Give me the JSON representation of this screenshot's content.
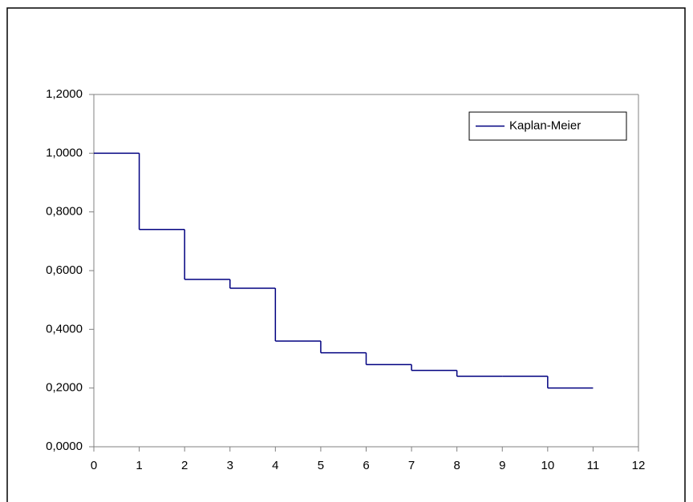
{
  "chart_data": {
    "type": "line",
    "x": [
      0,
      1,
      2,
      3,
      4,
      5,
      6,
      7,
      8,
      9,
      10,
      11
    ],
    "series": [
      {
        "name": "Kaplan-Meier",
        "color": "#000080",
        "step": "post",
        "values": [
          1.0,
          0.74,
          0.57,
          0.54,
          0.36,
          0.32,
          0.28,
          0.26,
          0.24,
          0.24,
          0.2,
          0.2
        ]
      }
    ],
    "xlim": [
      0,
      12
    ],
    "xticks": [
      0,
      1,
      2,
      3,
      4,
      5,
      6,
      7,
      8,
      9,
      10,
      11,
      12
    ],
    "ylim": [
      0,
      1.2
    ],
    "yticks": [
      {
        "value": 0,
        "label": "0,0000"
      },
      {
        "value": 0.2,
        "label": "0,2000"
      },
      {
        "value": 0.4,
        "label": "0,4000"
      },
      {
        "value": 0.6,
        "label": "0,6000"
      },
      {
        "value": 0.8,
        "label": "0,8000"
      },
      {
        "value": 1.0,
        "label": "1,0000"
      },
      {
        "value": 1.2,
        "label": "1,2000"
      }
    ],
    "grid": false,
    "legend": "upper right"
  }
}
